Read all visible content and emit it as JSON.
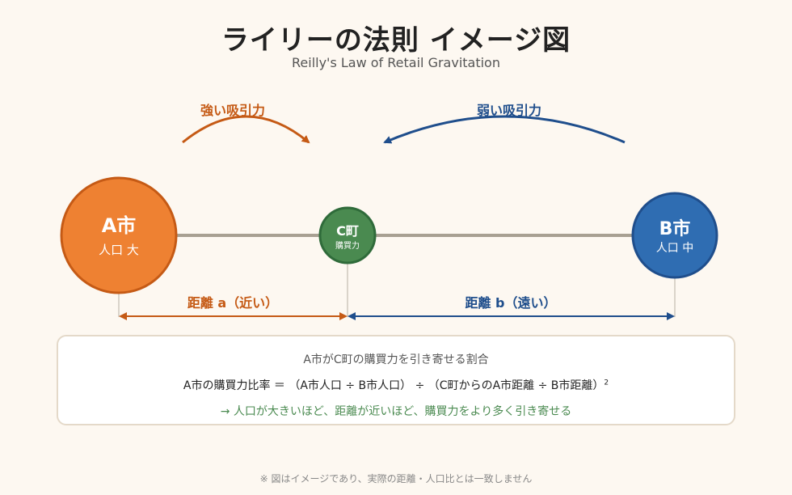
{
  "header": {
    "title": "ライリーの法則 イメージ図",
    "subtitle": "Reilly's Law of Retail Gravitation"
  },
  "nodes": {
    "a": {
      "name": "A市",
      "detail": "人口 大",
      "color": "#ee8132"
    },
    "c": {
      "name": "C町",
      "detail": "購買力",
      "color": "#4a8a50"
    },
    "b": {
      "name": "B市",
      "detail": "人口 中",
      "color": "#2f6db2"
    }
  },
  "arcs": {
    "strong": {
      "label": "強い吸引力",
      "color": "#c55a15"
    },
    "weak": {
      "label": "弱い吸引力",
      "color": "#1f4e8c"
    }
  },
  "distances": {
    "a": {
      "label": "距離 a（近い）",
      "color": "#c55a15"
    },
    "b": {
      "label": "距離 b（遠い）",
      "color": "#1f4e8c"
    }
  },
  "formula": {
    "heading": "A市がC町の購買力を引き寄せる割合",
    "expression": "A市の購買力比率 ＝ （A市人口 ÷ B市人口） ÷ （C町からのA市距離 ÷ B市距離）",
    "exponent": "2",
    "note": "→ 人口が大きいほど、距離が近いほど、購買力をより多く引き寄せる"
  },
  "footnote": "※ 図はイメージであり、実際の距離・人口比とは一致しません"
}
